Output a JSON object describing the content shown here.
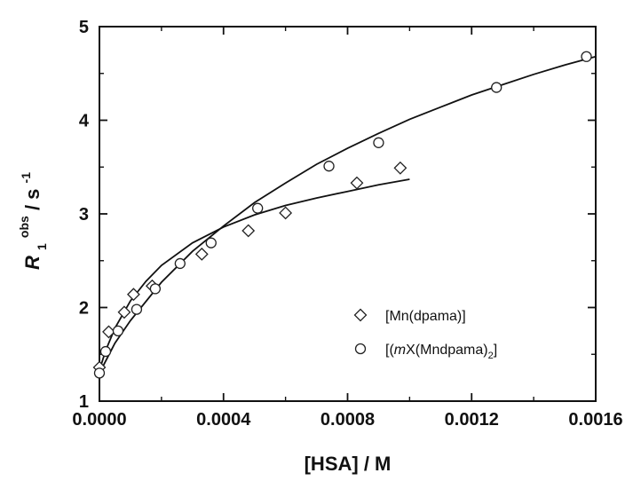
{
  "chart_data": {
    "type": "scatter",
    "xlabel": "[HSA] / M",
    "ylabel": {
      "main": "R",
      "sub": "1",
      "sup": "obs",
      "unit_prefix": " / s",
      "unit_sup": "-1"
    },
    "xlim": [
      0.0,
      0.0016
    ],
    "ylim": [
      1,
      5
    ],
    "x_ticks": [
      0.0,
      0.0004,
      0.0008,
      0.0012,
      0.0016
    ],
    "x_tick_labels": [
      "0.0000",
      "0.0004",
      "0.0008",
      "0.0012",
      "0.0016"
    ],
    "y_ticks": [
      1,
      2,
      3,
      4,
      5
    ],
    "y_tick_labels": [
      "1",
      "2",
      "3",
      "4",
      "5"
    ],
    "legend_position": "lower-right",
    "series": [
      {
        "name": "[Mn(dpama)]",
        "name_parts": {
          "pre": "[Mn(dpama)]"
        },
        "marker": "diamond",
        "x": [
          0.0,
          3e-05,
          8e-05,
          0.00011,
          0.00017,
          0.00033,
          0.00048,
          0.0006,
          0.00083,
          0.00097
        ],
        "y": [
          1.36,
          1.74,
          1.95,
          2.14,
          2.23,
          2.57,
          2.82,
          3.01,
          3.33,
          3.49
        ],
        "fit": {
          "x": [
            0.0,
            2e-05,
            5e-05,
            0.0001,
            0.00015,
            0.0002,
            0.0003,
            0.0004,
            0.0005,
            0.0006,
            0.0007,
            0.0008,
            0.0009,
            0.001
          ],
          "y": [
            1.33,
            1.54,
            1.78,
            2.07,
            2.28,
            2.45,
            2.69,
            2.86,
            2.99,
            3.09,
            3.17,
            3.24,
            3.31,
            3.37
          ]
        }
      },
      {
        "name": "[(mX(Mndpama)2]",
        "name_parts": {
          "pre": "[(",
          "italic": "m",
          "mid": "X(Mndpama)",
          "sub": "2",
          "post": "]"
        },
        "marker": "circle",
        "x": [
          0.0,
          2e-05,
          6e-05,
          0.00012,
          0.00018,
          0.00026,
          0.00036,
          0.00051,
          0.00074,
          0.0009,
          0.00128,
          0.00157
        ],
        "y": [
          1.3,
          1.53,
          1.75,
          1.98,
          2.2,
          2.47,
          2.69,
          3.06,
          3.51,
          3.76,
          4.35,
          4.68
        ],
        "fit": {
          "x": [
            0.0,
            5e-05,
            0.0001,
            0.0002,
            0.0003,
            0.0004,
            0.0005,
            0.0006,
            0.0007,
            0.0008,
            0.0009,
            0.001,
            0.0011,
            0.0012,
            0.0013,
            0.0014,
            0.0015,
            0.0016
          ],
          "y": [
            1.3,
            1.62,
            1.86,
            2.27,
            2.6,
            2.87,
            3.12,
            3.33,
            3.53,
            3.7,
            3.86,
            4.01,
            4.14,
            4.27,
            4.38,
            4.49,
            4.59,
            4.68
          ]
        }
      }
    ]
  }
}
